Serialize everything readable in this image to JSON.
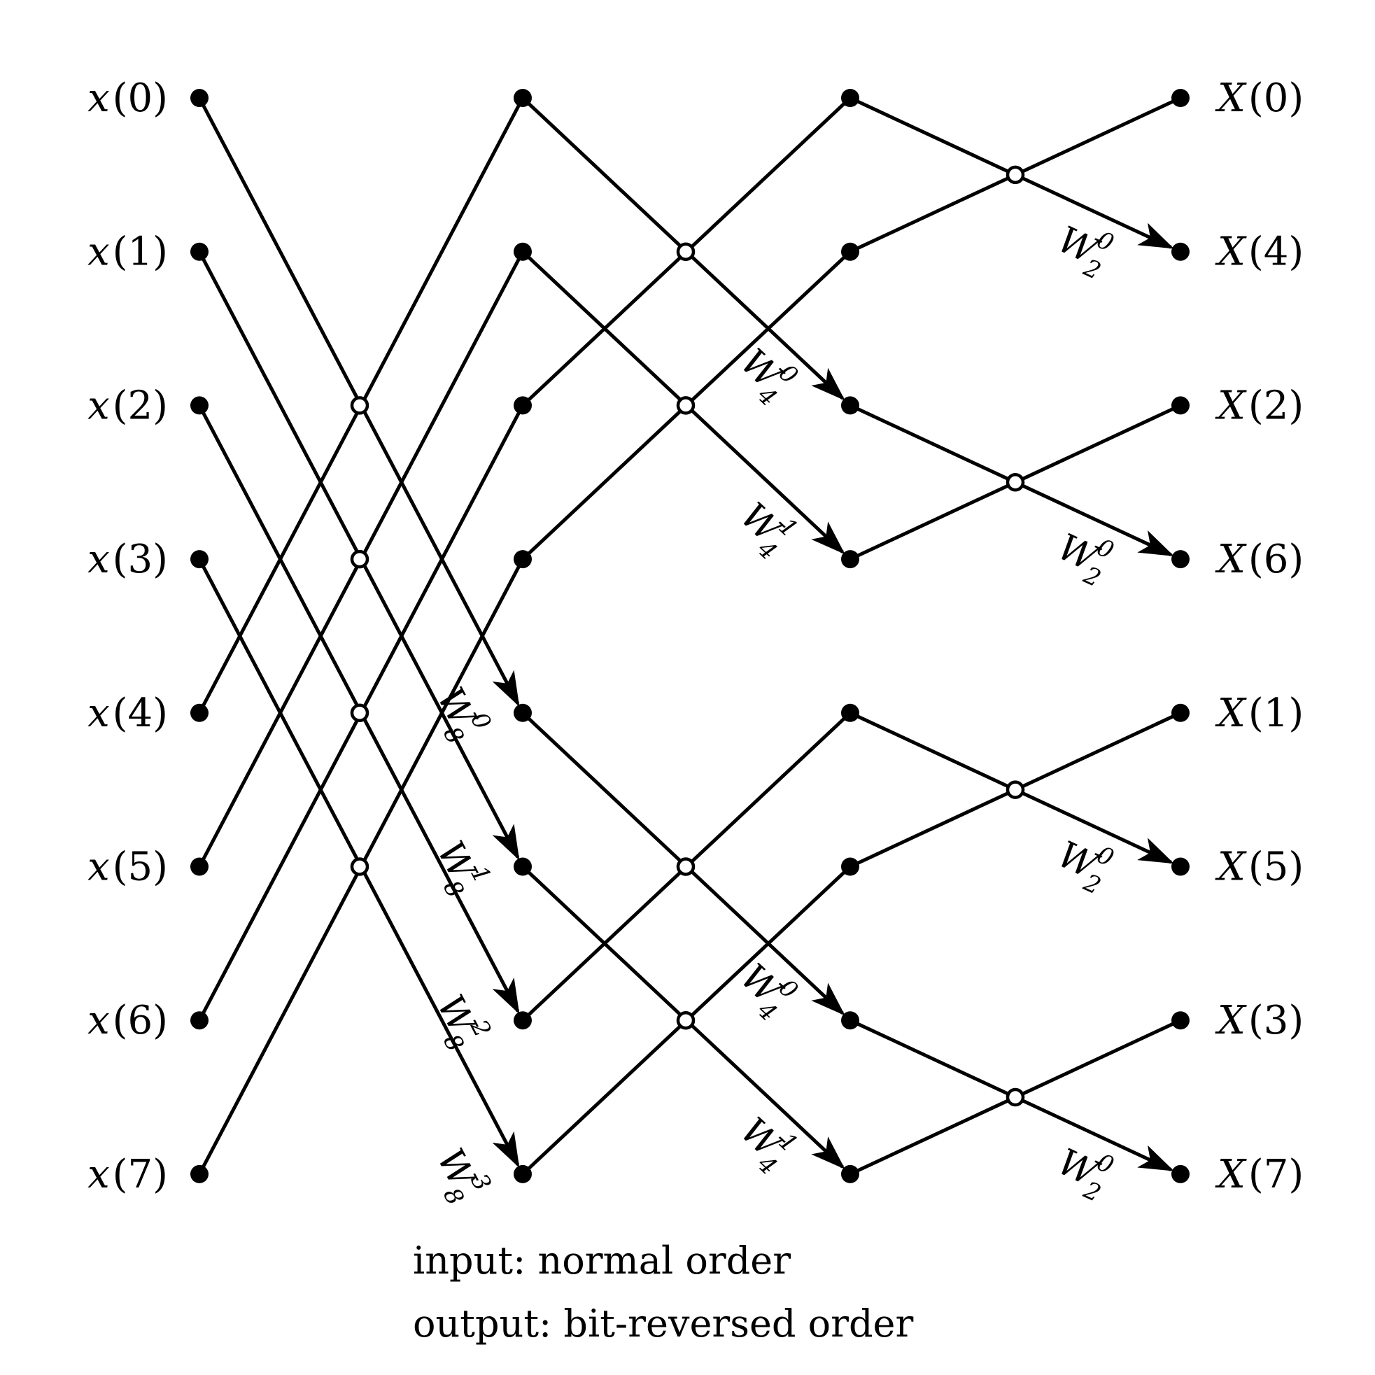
{
  "inputs": [
    "x(0)",
    "x(1)",
    "x(2)",
    "x(3)",
    "x(4)",
    "x(5)",
    "x(6)",
    "x(7)"
  ],
  "outputs": [
    "X(0)",
    "X(4)",
    "X(2)",
    "X(6)",
    "X(1)",
    "X(5)",
    "X(3)",
    "X(7)"
  ],
  "twiddles": {
    "stage1": [
      {
        "base": "W",
        "sub": "8",
        "sup": "0"
      },
      {
        "base": "W",
        "sub": "8",
        "sup": "1"
      },
      {
        "base": "W",
        "sub": "8",
        "sup": "2"
      },
      {
        "base": "W",
        "sub": "8",
        "sup": "3"
      }
    ],
    "stage2": [
      {
        "base": "W",
        "sub": "4",
        "sup": "0"
      },
      {
        "base": "W",
        "sub": "4",
        "sup": "1"
      },
      {
        "base": "W",
        "sub": "4",
        "sup": "0"
      },
      {
        "base": "W",
        "sub": "4",
        "sup": "1"
      }
    ],
    "stage3": [
      {
        "base": "W",
        "sub": "2",
        "sup": "0"
      },
      {
        "base": "W",
        "sub": "2",
        "sup": "0"
      },
      {
        "base": "W",
        "sub": "2",
        "sup": "0"
      },
      {
        "base": "W",
        "sub": "2",
        "sup": "0"
      }
    ]
  },
  "caption": {
    "line1": "input: normal order",
    "line2": "output: bit-reversed order"
  }
}
